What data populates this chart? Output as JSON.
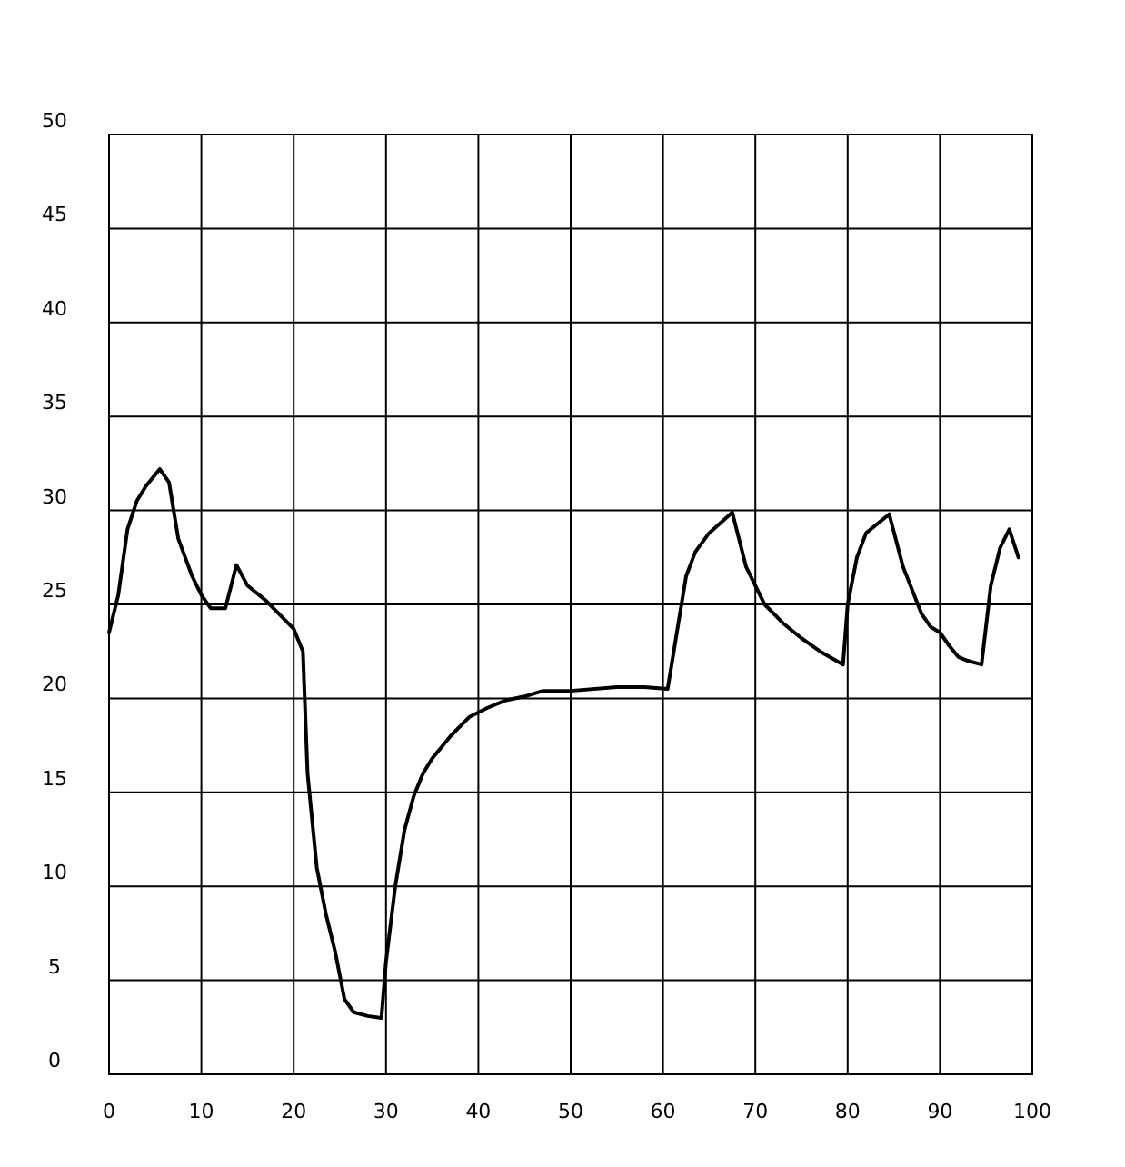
{
  "chart_data": {
    "type": "line",
    "x": [
      0,
      1,
      2,
      3,
      4,
      5,
      5.5,
      6.5,
      7.5,
      9,
      10,
      11,
      12.6,
      13.8,
      15,
      17,
      19,
      20,
      21,
      21.5,
      22.5,
      23.5,
      24.5,
      25.5,
      26.5,
      28,
      29.5,
      30,
      31,
      32,
      33,
      34,
      35,
      37,
      39,
      41,
      43,
      45,
      47,
      50,
      55,
      58,
      60.5,
      61.5,
      62.5,
      63.5,
      65,
      67.5,
      69,
      71,
      73,
      75,
      77,
      79.5,
      80,
      81,
      82,
      84.5,
      86,
      88,
      89,
      90,
      91,
      92,
      93,
      94.5,
      95.5,
      96.5,
      97.5,
      98.5
    ],
    "series": [
      {
        "color": "#000000",
        "values": [
          23.5,
          25.5,
          29,
          30.5,
          31.3,
          31.9,
          32.2,
          31.5,
          28.5,
          26.5,
          25.5,
          24.8,
          24.8,
          27.1,
          26,
          25.2,
          24.2,
          23.7,
          22.5,
          16,
          11,
          8.5,
          6.5,
          4,
          3.3,
          3.1,
          3,
          6,
          10,
          13,
          14.8,
          16,
          16.8,
          18,
          19,
          19.5,
          19.9,
          20.1,
          20.4,
          20.4,
          20.6,
          20.6,
          20.5,
          23.5,
          26.5,
          27.8,
          28.8,
          29.9,
          27,
          25,
          24,
          23.2,
          22.5,
          21.8,
          25,
          27.5,
          28.8,
          29.8,
          27,
          24.5,
          23.8,
          23.5,
          22.8,
          22.2,
          22,
          21.8,
          26,
          28,
          29,
          27.5
        ]
      }
    ],
    "xlim": [
      0,
      100
    ],
    "xticks": [
      0,
      10,
      20,
      30,
      40,
      50,
      60,
      70,
      80,
      90,
      100
    ],
    "ylim": [
      0,
      50
    ],
    "yticks": [
      0,
      5,
      10,
      15,
      20,
      25,
      30,
      35,
      40,
      45,
      50
    ],
    "grid": true,
    "marker": "none",
    "line_style": "solid"
  }
}
